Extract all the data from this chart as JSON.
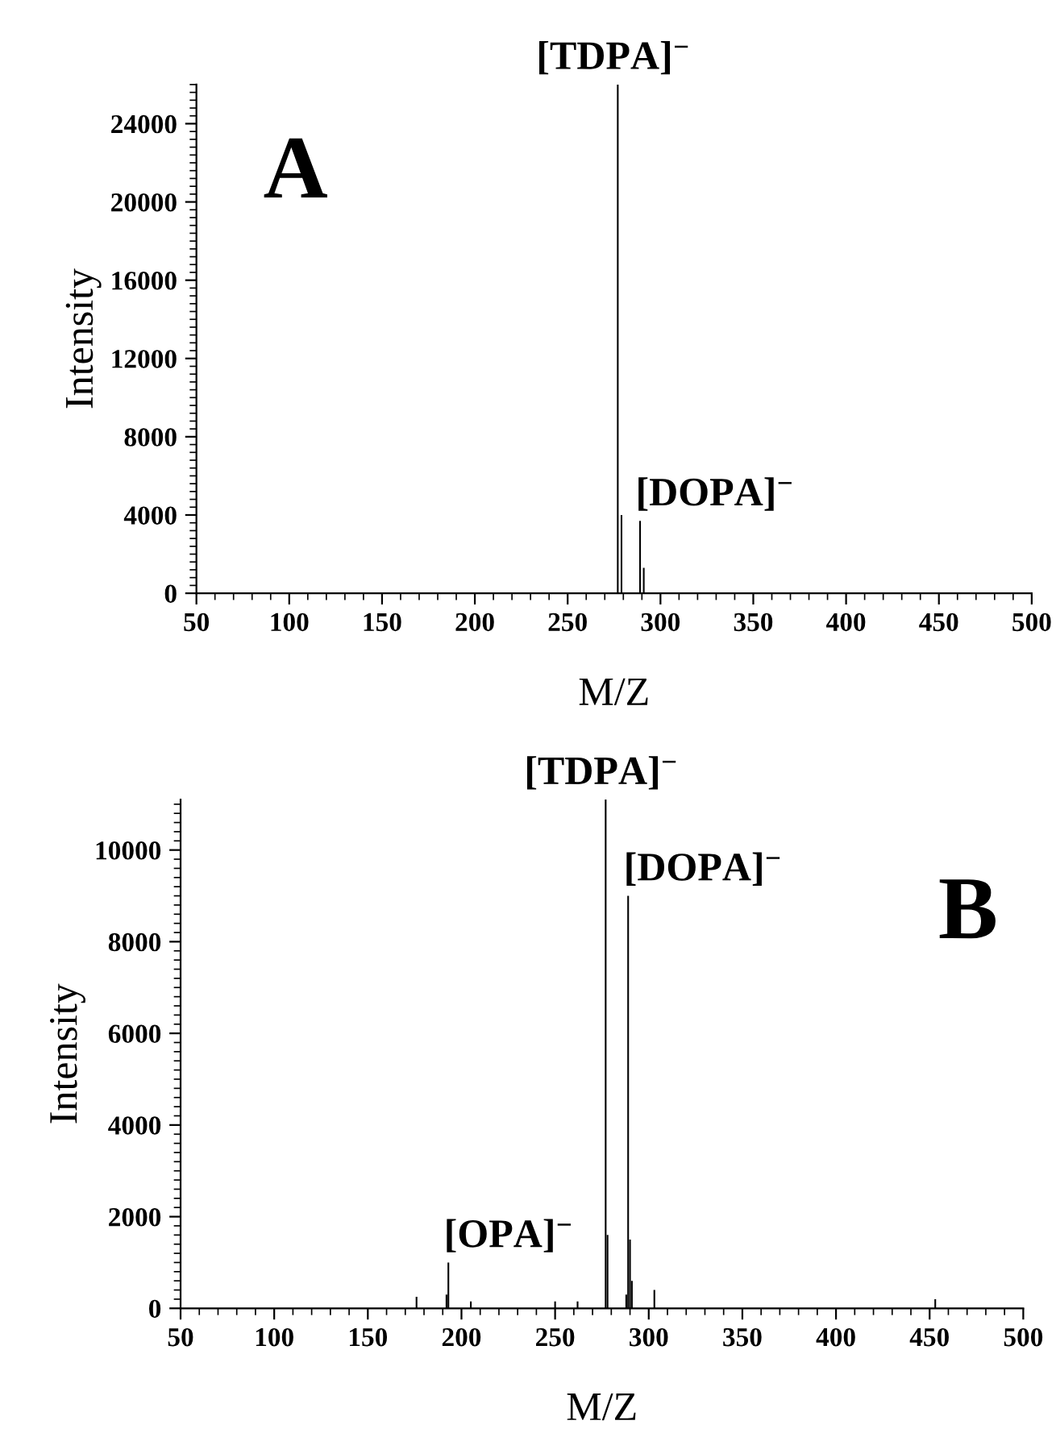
{
  "chart_data": [
    {
      "type": "bar",
      "xlabel": "M/Z",
      "ylabel": "Intensity",
      "x": [
        277,
        279,
        289,
        291
      ],
      "values": [
        26000,
        4000,
        3700,
        1300
      ],
      "color": "#000000",
      "xlim": [
        50,
        500
      ],
      "ylim": [
        0,
        26000
      ],
      "xticks": [
        50,
        100,
        150,
        200,
        250,
        300,
        350,
        400,
        450,
        500
      ],
      "yticks": [
        0,
        4000,
        8000,
        12000,
        16000,
        20000,
        24000
      ],
      "annotations": [
        "A",
        {
          "text": "[TDPA]$^{−}$",
          "x": 277,
          "y": 26000
        },
        {
          "text": "[DOPA]$^{−}$",
          "x": 289,
          "y": 3700
        }
      ]
    },
    {
      "type": "bar",
      "xlabel": "M/Z",
      "ylabel": "Intensity",
      "x": [
        176,
        192,
        193,
        205,
        250,
        262,
        277,
        278,
        288,
        289,
        290,
        291,
        303,
        453
      ],
      "values": [
        250,
        300,
        1000,
        150,
        150,
        150,
        11100,
        1600,
        300,
        9000,
        1500,
        600,
        400,
        200
      ],
      "color": "#000000",
      "xlim": [
        50,
        500
      ],
      "ylim": [
        0,
        11100
      ],
      "xticks": [
        50,
        100,
        150,
        200,
        250,
        300,
        350,
        400,
        450,
        500
      ],
      "yticks": [
        0,
        2000,
        4000,
        6000,
        8000,
        10000
      ],
      "annotations": [
        "B",
        {
          "text": "[TDPA]$^{−}$",
          "x": 277,
          "y": 11100
        },
        {
          "text": "[DOPA]$^{−}$",
          "x": 289,
          "y": 9000
        },
        {
          "text": "[OPA]$^{−}$",
          "x": 193,
          "y": 1000
        }
      ]
    }
  ]
}
